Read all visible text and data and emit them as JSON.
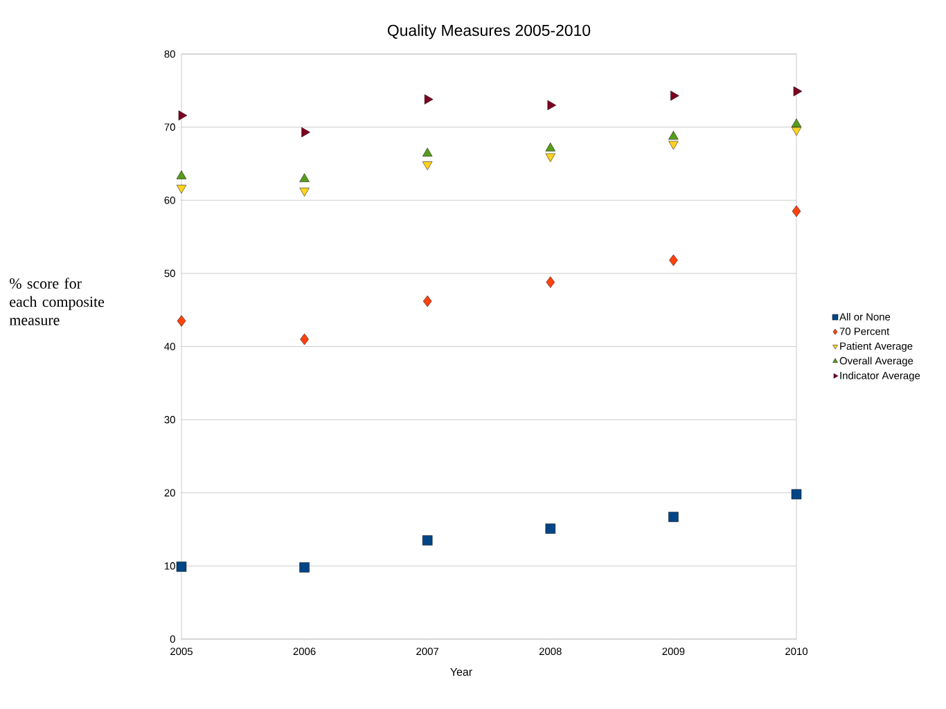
{
  "chart_data": {
    "type": "scatter",
    "title": "Quality Measures 2005-2010",
    "xlabel": "Year",
    "ylabel": "% score for each composite measure",
    "x": [
      2005,
      2006,
      2007,
      2008,
      2009,
      2010
    ],
    "xlim": [
      2005,
      2010
    ],
    "xticks": [
      2005,
      2006,
      2007,
      2008,
      2009,
      2010
    ],
    "ylim": [
      0,
      80
    ],
    "yticks": [
      0,
      10,
      20,
      30,
      40,
      50,
      60,
      70,
      80
    ],
    "grid": "y",
    "legend": "right",
    "series": [
      {
        "name": "All or None",
        "color": "#004586",
        "marker": "square",
        "values": [
          9.9,
          9.8,
          13.5,
          15.1,
          16.7,
          19.8
        ]
      },
      {
        "name": "70 Percent",
        "color": "#ff420e",
        "marker": "diamond",
        "values": [
          43.5,
          41.0,
          46.2,
          48.8,
          51.8,
          58.5
        ]
      },
      {
        "name": "Patient Average",
        "color": "#ffd320",
        "marker": "triangle-down",
        "values": [
          61.7,
          61.3,
          64.9,
          66.0,
          67.7,
          69.6
        ]
      },
      {
        "name": "Overall Average",
        "color": "#579d1c",
        "marker": "triangle",
        "values": [
          63.3,
          62.9,
          66.4,
          67.1,
          68.7,
          70.4
        ]
      },
      {
        "name": "Indicator Average",
        "color": "#7e0021",
        "marker": "triangle-right",
        "values": [
          71.6,
          69.3,
          73.8,
          73.0,
          74.3,
          74.9
        ]
      }
    ]
  }
}
